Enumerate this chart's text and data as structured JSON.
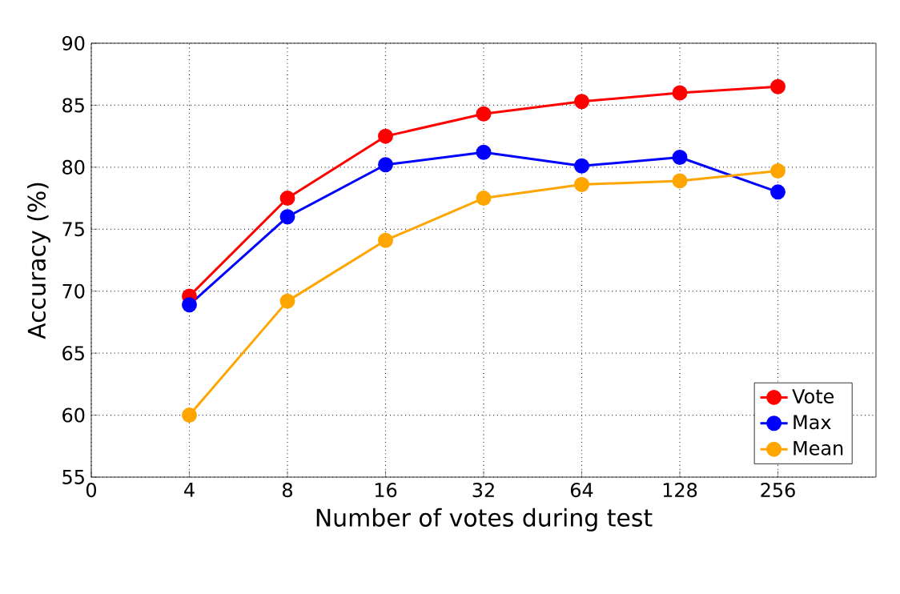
{
  "chart_data": {
    "type": "line",
    "xlabel": "Number of votes during test",
    "ylabel": "Accuracy (%)",
    "categories": [
      "0",
      "4",
      "8",
      "16",
      "32",
      "64",
      "128",
      "256"
    ],
    "series": [
      {
        "name": "Vote",
        "color": "#ff0000",
        "values": [
          null,
          69.6,
          77.5,
          82.5,
          84.3,
          85.3,
          86.0,
          86.5
        ]
      },
      {
        "name": "Max",
        "color": "#0000ff",
        "values": [
          null,
          68.9,
          76.0,
          80.2,
          81.2,
          80.1,
          80.8,
          78.0
        ]
      },
      {
        "name": "Mean",
        "color": "#ffa500",
        "values": [
          null,
          60.0,
          69.2,
          74.1,
          77.5,
          78.6,
          78.9,
          79.7
        ]
      }
    ],
    "ylim": [
      55,
      90
    ],
    "yticks": [
      55,
      60,
      65,
      70,
      75,
      80,
      85,
      90
    ],
    "grid": true,
    "legend": "bottom right",
    "marker": "circle",
    "line_style": "solid"
  }
}
